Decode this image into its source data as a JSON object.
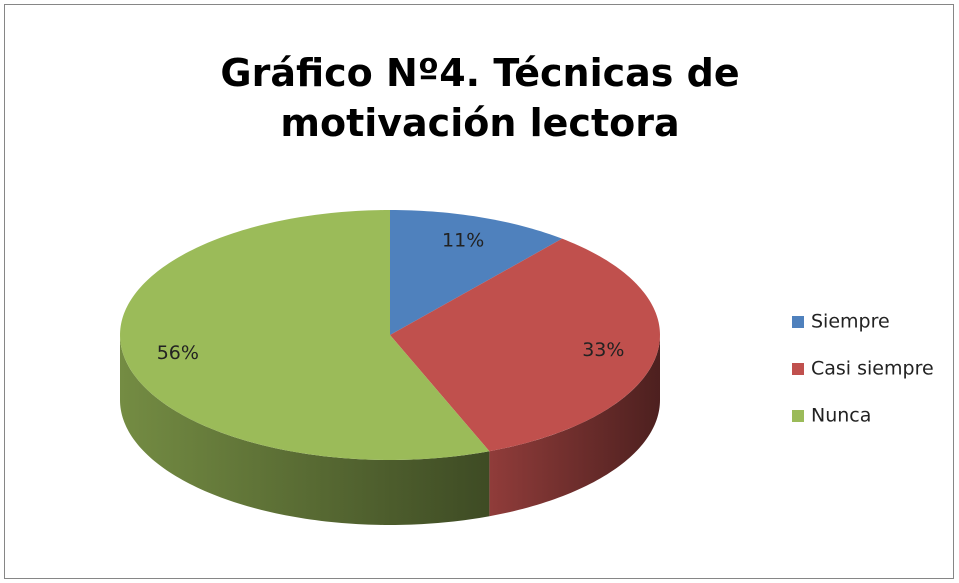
{
  "chart_data": {
    "type": "pie3d",
    "title": "Gráfico Nº4. Técnicas de motivación lectora",
    "categories": [
      "Siempre",
      "Casi siempre",
      "Nunca"
    ],
    "values": [
      11,
      33,
      56
    ],
    "value_labels": [
      "11%",
      "33%",
      "56%"
    ],
    "colors": [
      "#4f81bd",
      "#c0504d",
      "#9bbb59"
    ],
    "legend": "right"
  }
}
